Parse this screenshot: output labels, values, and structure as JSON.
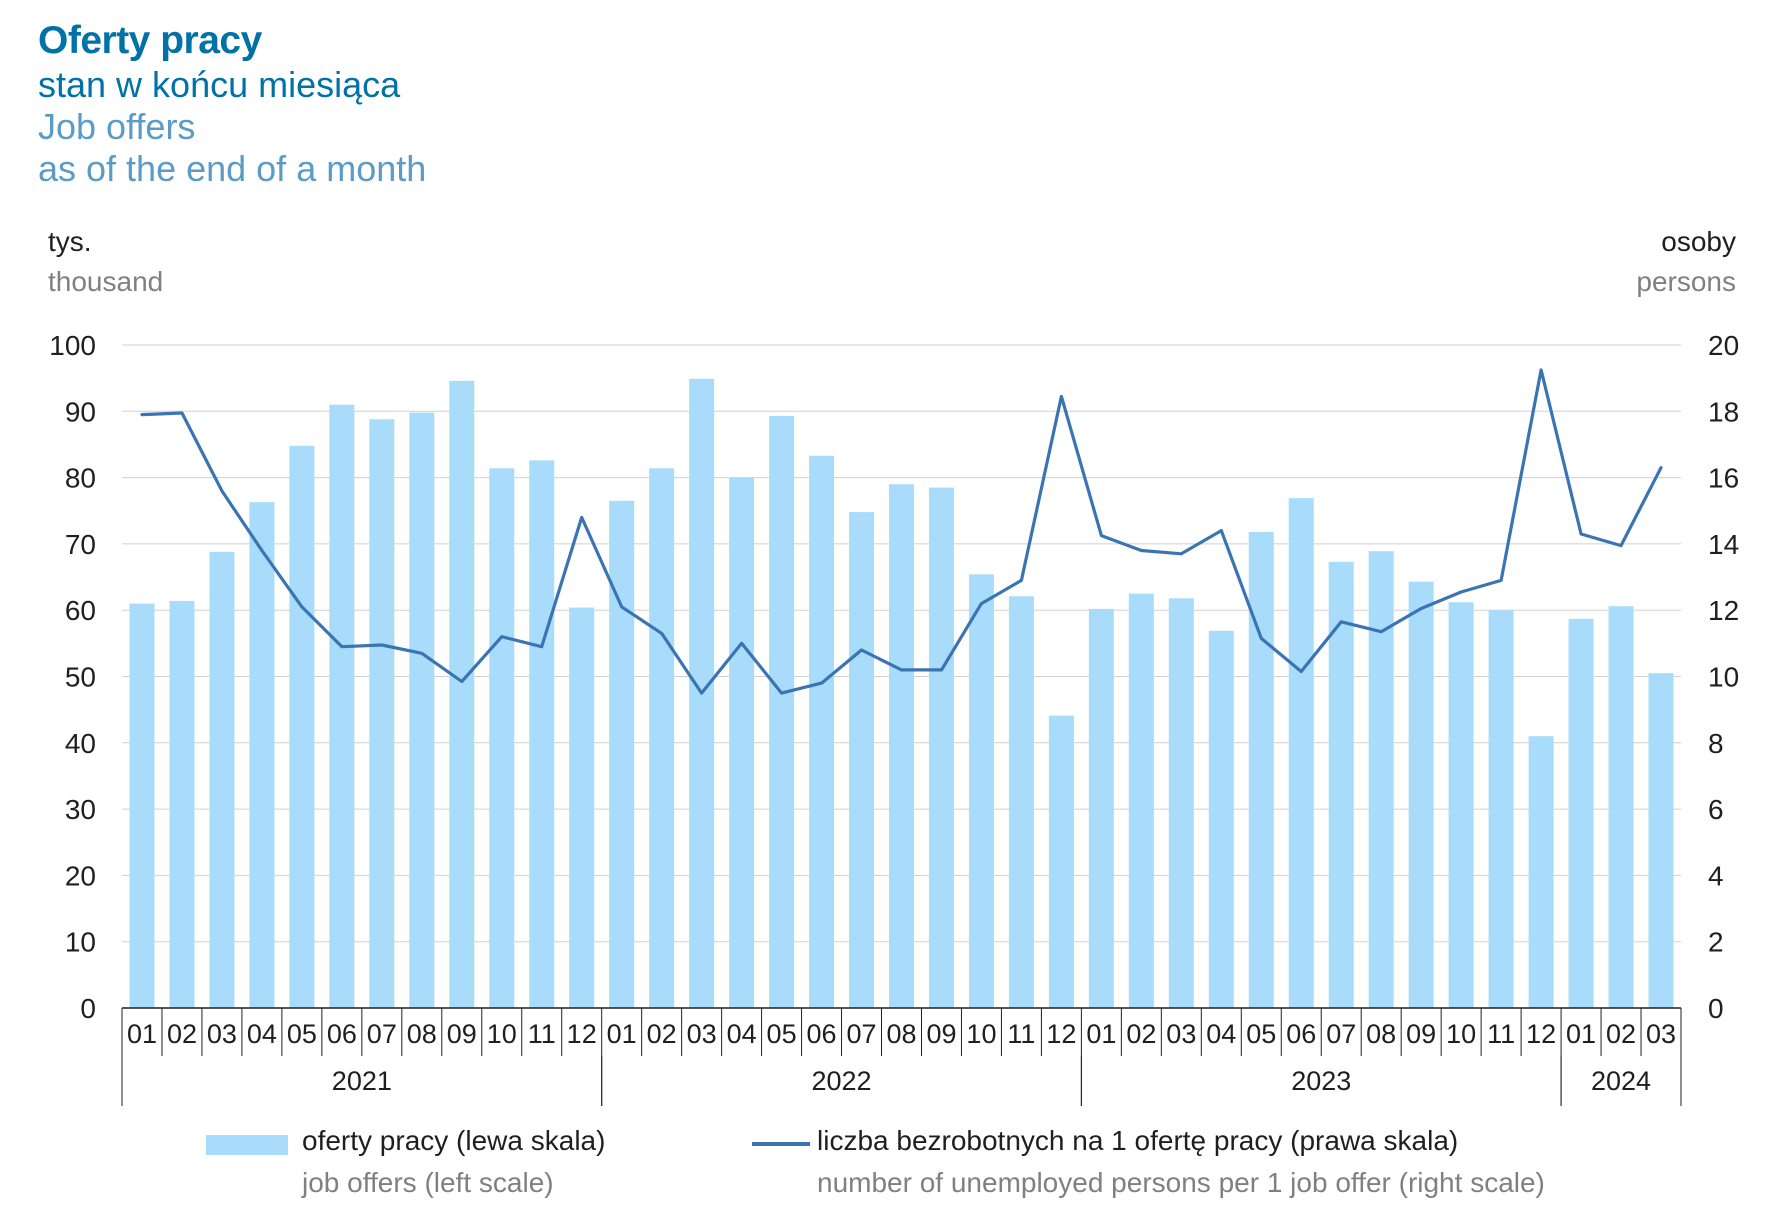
{
  "header": {
    "title_pl": "Oferty pracy",
    "subtitle_pl": "stan w końcu miesiąca",
    "title_en": "Job offers",
    "subtitle_en": "as of the end of a month"
  },
  "axes": {
    "left_unit_pl": "tys.",
    "left_unit_en": "thousand",
    "right_unit_pl": "osoby",
    "right_unit_en": "persons"
  },
  "legend": {
    "bars_pl": "oferty pracy (lewa skala)",
    "bars_en": "job offers (left scale)",
    "line_pl": "liczba bezrobotnych na 1 ofertę pracy (prawa skala)",
    "line_en": "number of unemployed persons per 1 job offer (right scale)"
  },
  "chart_data": {
    "type": "bar+line",
    "categories": [
      "01",
      "02",
      "03",
      "04",
      "05",
      "06",
      "07",
      "08",
      "09",
      "10",
      "11",
      "12",
      "01",
      "02",
      "03",
      "04",
      "05",
      "06",
      "07",
      "08",
      "09",
      "10",
      "11",
      "12",
      "01",
      "02",
      "03",
      "04",
      "05",
      "06",
      "07",
      "08",
      "09",
      "10",
      "11",
      "12",
      "01",
      "02",
      "03"
    ],
    "years": [
      {
        "label": "2021",
        "start": 0,
        "count": 12
      },
      {
        "label": "2022",
        "start": 12,
        "count": 12
      },
      {
        "label": "2023",
        "start": 24,
        "count": 12
      },
      {
        "label": "2024",
        "start": 36,
        "count": 3
      }
    ],
    "series": [
      {
        "name": "oferty pracy (lewa skala)",
        "type": "bar",
        "axis": "left",
        "color": "#a9dcfa",
        "values": [
          61,
          61.4,
          68.8,
          76.3,
          84.8,
          91,
          88.8,
          89.8,
          94.6,
          81.4,
          82.6,
          60.4,
          76.5,
          81.4,
          94.9,
          80,
          89.3,
          83.3,
          74.8,
          79,
          78.5,
          65.4,
          62.1,
          44.1,
          60.2,
          62.5,
          61.8,
          56.9,
          71.8,
          76.9,
          67.3,
          68.9,
          64.3,
          61.2,
          60,
          41,
          58.7,
          60.6,
          50.5
        ]
      },
      {
        "name": "liczba bezrobotnych na 1 ofertę pracy (prawa skala)",
        "type": "line",
        "axis": "right",
        "color": "#3a74b2",
        "values": [
          17.9,
          17.95,
          15.6,
          13.8,
          12.1,
          10.9,
          10.95,
          10.7,
          9.85,
          11.2,
          10.9,
          14.8,
          12.1,
          11.3,
          9.5,
          11,
          9.5,
          9.8,
          10.8,
          10.2,
          10.2,
          12.2,
          12.9,
          18.45,
          14.25,
          13.8,
          13.7,
          14.4,
          11.15,
          10.15,
          11.65,
          11.35,
          12.05,
          12.55,
          12.9,
          19.25,
          14.3,
          13.95,
          16.3
        ]
      }
    ],
    "ylim_left": [
      0,
      100
    ],
    "yticks_left": [
      0,
      10,
      20,
      30,
      40,
      50,
      60,
      70,
      80,
      90,
      100
    ],
    "ylim_right": [
      0,
      20
    ],
    "yticks_right": [
      0,
      2,
      4,
      6,
      8,
      10,
      12,
      14,
      16,
      18,
      20
    ],
    "grid": true,
    "legend_position": "bottom"
  }
}
